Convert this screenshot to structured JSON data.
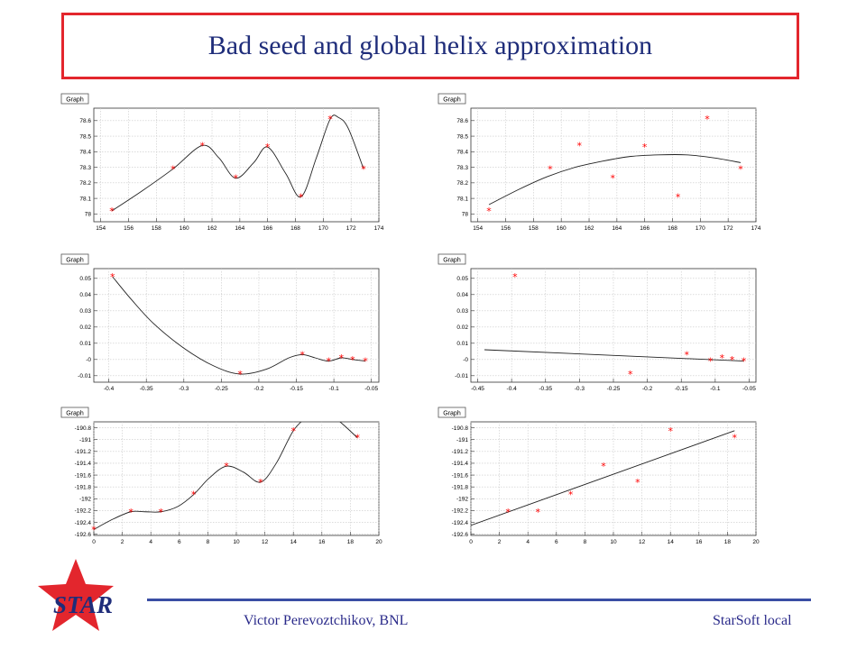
{
  "slide": {
    "title": "Bad seed and global helix approximation",
    "footer_author": "Victor Perevoztchikov, BNL",
    "footer_right": "StarSoft local",
    "logo_text": "STAR",
    "colors": {
      "title": "#1f2d7a",
      "title_border": "#e3262d",
      "footer_line": "#3a4ea4",
      "logo_star": "#e3262d",
      "marker": "#ff0000"
    }
  },
  "chart_data": [
    {
      "type": "line",
      "label": "Graph",
      "points_x": [
        154.8,
        159.2,
        161.3,
        163.7,
        166.0,
        168.4,
        170.5,
        172.9
      ],
      "points_y": [
        78.02,
        78.29,
        78.44,
        78.23,
        78.43,
        78.11,
        78.61,
        78.29
      ],
      "curve_x": [
        154.8,
        157,
        159.2,
        161.3,
        162.5,
        163.7,
        165,
        166.0,
        167.3,
        168.4,
        169.5,
        170.5,
        171.1,
        171.8,
        172.9
      ],
      "curve_y": [
        78.02,
        78.15,
        78.29,
        78.44,
        78.36,
        78.23,
        78.33,
        78.43,
        78.26,
        78.11,
        78.36,
        78.61,
        78.62,
        78.55,
        78.29
      ],
      "xlim": [
        153.5,
        174
      ],
      "ylim": [
        77.95,
        78.68
      ],
      "xticks": [
        "154",
        "156",
        "158",
        "160",
        "162",
        "164",
        "166",
        "168",
        "170",
        "172",
        "174"
      ],
      "xtick_vals": [
        154,
        156,
        158,
        160,
        162,
        164,
        166,
        168,
        170,
        172,
        174
      ],
      "yticks": [
        "78",
        "78.1",
        "78.2",
        "78.3",
        "78.4",
        "78.5",
        "78.6"
      ],
      "ytick_vals": [
        78,
        78.1,
        78.2,
        78.3,
        78.4,
        78.5,
        78.6
      ]
    },
    {
      "type": "line",
      "label": "Graph",
      "points_x": [
        154.8,
        159.2,
        161.3,
        163.7,
        166.0,
        168.4,
        170.5,
        172.9
      ],
      "points_y": [
        78.02,
        78.29,
        78.44,
        78.23,
        78.43,
        78.11,
        78.61,
        78.29
      ],
      "curve_x": [
        154.8,
        157,
        159,
        161,
        163,
        165,
        167,
        169,
        171,
        172.9
      ],
      "curve_y": [
        78.06,
        78.16,
        78.24,
        78.3,
        78.34,
        78.37,
        78.38,
        78.38,
        78.36,
        78.33
      ],
      "xlim": [
        153.5,
        174
      ],
      "ylim": [
        77.95,
        78.68
      ],
      "xticks": [
        "154",
        "156",
        "158",
        "160",
        "162",
        "164",
        "166",
        "168",
        "170",
        "172",
        "174"
      ],
      "xtick_vals": [
        154,
        156,
        158,
        160,
        162,
        164,
        166,
        168,
        170,
        172,
        174
      ],
      "yticks": [
        "78",
        "78.1",
        "78.2",
        "78.3",
        "78.4",
        "78.5",
        "78.6"
      ],
      "ytick_vals": [
        78,
        78.1,
        78.2,
        78.3,
        78.4,
        78.5,
        78.6
      ]
    },
    {
      "type": "line",
      "label": "Graph",
      "points_x": [
        -0.395,
        -0.225,
        -0.142,
        -0.107,
        -0.09,
        -0.075,
        -0.058
      ],
      "points_y": [
        0.051,
        -0.009,
        0.003,
        -0.001,
        0.001,
        0.0,
        -0.001
      ],
      "curve_x": [
        -0.395,
        -0.37,
        -0.34,
        -0.3,
        -0.26,
        -0.225,
        -0.19,
        -0.16,
        -0.142,
        -0.125,
        -0.107,
        -0.09,
        -0.075,
        -0.058
      ],
      "curve_y": [
        0.051,
        0.037,
        0.022,
        0.007,
        -0.004,
        -0.009,
        -0.006,
        0.001,
        0.003,
        0.001,
        -0.001,
        0.001,
        0.0,
        -0.001
      ],
      "xlim": [
        -0.42,
        -0.04
      ],
      "ylim": [
        -0.014,
        0.056
      ],
      "xticks": [
        "-0.4",
        "-0.35",
        "-0.3",
        "-0.25",
        "-0.2",
        "-0.15",
        "-0.1",
        "-0.05"
      ],
      "xtick_vals": [
        -0.4,
        -0.35,
        -0.3,
        -0.25,
        -0.2,
        -0.15,
        -0.1,
        -0.05
      ],
      "yticks": [
        "-0.01",
        "-0",
        "0.01",
        "0.02",
        "0.03",
        "0.04",
        "0.05"
      ],
      "ytick_vals": [
        -0.01,
        0,
        0.01,
        0.02,
        0.03,
        0.04,
        0.05
      ]
    },
    {
      "type": "line",
      "label": "Graph",
      "points_x": [
        -0.395,
        -0.225,
        -0.142,
        -0.107,
        -0.09,
        -0.075,
        -0.058
      ],
      "points_y": [
        0.051,
        -0.009,
        0.003,
        -0.001,
        0.001,
        0.0,
        -0.001
      ],
      "curve_x": [
        -0.44,
        -0.058
      ],
      "curve_y": [
        0.006,
        -0.001
      ],
      "xlim": [
        -0.46,
        -0.04
      ],
      "ylim": [
        -0.014,
        0.056
      ],
      "xticks": [
        "-0.45",
        "-0.4",
        "-0.35",
        "-0.3",
        "-0.25",
        "-0.2",
        "-0.15",
        "-0.1",
        "-0.05"
      ],
      "xtick_vals": [
        -0.45,
        -0.4,
        -0.35,
        -0.3,
        -0.25,
        -0.2,
        -0.15,
        -0.1,
        -0.05
      ],
      "yticks": [
        "-0.01",
        "-0",
        "0.01",
        "0.02",
        "0.03",
        "0.04",
        "0.05"
      ],
      "ytick_vals": [
        -0.01,
        0,
        0.01,
        0.02,
        0.03,
        0.04,
        0.05
      ]
    },
    {
      "type": "line",
      "label": "Graph",
      "points_x": [
        0,
        2.6,
        4.7,
        7.0,
        9.3,
        11.7,
        14.0,
        18.5
      ],
      "points_y": [
        -192.52,
        -192.22,
        -192.22,
        -191.93,
        -191.45,
        -191.72,
        -190.85,
        -190.97
      ],
      "curve_x": [
        0,
        1.3,
        2.6,
        3.6,
        4.7,
        5.9,
        7.0,
        8.1,
        9.3,
        10.5,
        11.7,
        12.8,
        14.0,
        15.0,
        16.0,
        17.0,
        18.5
      ],
      "curve_y": [
        -192.52,
        -192.35,
        -192.22,
        -192.22,
        -192.22,
        -192.13,
        -191.93,
        -191.65,
        -191.45,
        -191.55,
        -191.72,
        -191.4,
        -190.85,
        -190.62,
        -190.58,
        -190.65,
        -190.97
      ],
      "xlim": [
        0,
        20
      ],
      "ylim": [
        -192.62,
        -190.7
      ],
      "xticks": [
        "0",
        "2",
        "4",
        "6",
        "8",
        "10",
        "12",
        "14",
        "16",
        "18",
        "20"
      ],
      "xtick_vals": [
        0,
        2,
        4,
        6,
        8,
        10,
        12,
        14,
        16,
        18,
        20
      ],
      "yticks": [
        "-192.6",
        "-192.4",
        "-192.2",
        "-192",
        "-191.8",
        "-191.6",
        "-191.4",
        "-191.2",
        "-191",
        "-190.8"
      ],
      "ytick_vals": [
        -192.6,
        -192.4,
        -192.2,
        -192,
        -191.8,
        -191.6,
        -191.4,
        -191.2,
        -191,
        -190.8
      ]
    },
    {
      "type": "line",
      "label": "Graph",
      "points_x": [
        2.6,
        4.7,
        7.0,
        9.3,
        11.7,
        14.0,
        18.5
      ],
      "points_y": [
        -192.22,
        -192.22,
        -191.93,
        -191.45,
        -191.72,
        -190.85,
        -190.97
      ],
      "curve_x": [
        0,
        18.5
      ],
      "curve_y": [
        -192.45,
        -190.85
      ],
      "xlim": [
        0,
        20
      ],
      "ylim": [
        -192.62,
        -190.7
      ],
      "xticks": [
        "0",
        "2",
        "4",
        "6",
        "8",
        "10",
        "12",
        "14",
        "16",
        "18",
        "20"
      ],
      "xtick_vals": [
        0,
        2,
        4,
        6,
        8,
        10,
        12,
        14,
        16,
        18,
        20
      ],
      "yticks": [
        "-192.6",
        "-192.4",
        "-192.2",
        "-192",
        "-191.8",
        "-191.6",
        "-191.4",
        "-191.2",
        "-191",
        "-190.8"
      ],
      "ytick_vals": [
        -192.6,
        -192.4,
        -192.2,
        -192,
        -191.8,
        -191.6,
        -191.4,
        -191.2,
        -191,
        -190.8
      ]
    }
  ]
}
